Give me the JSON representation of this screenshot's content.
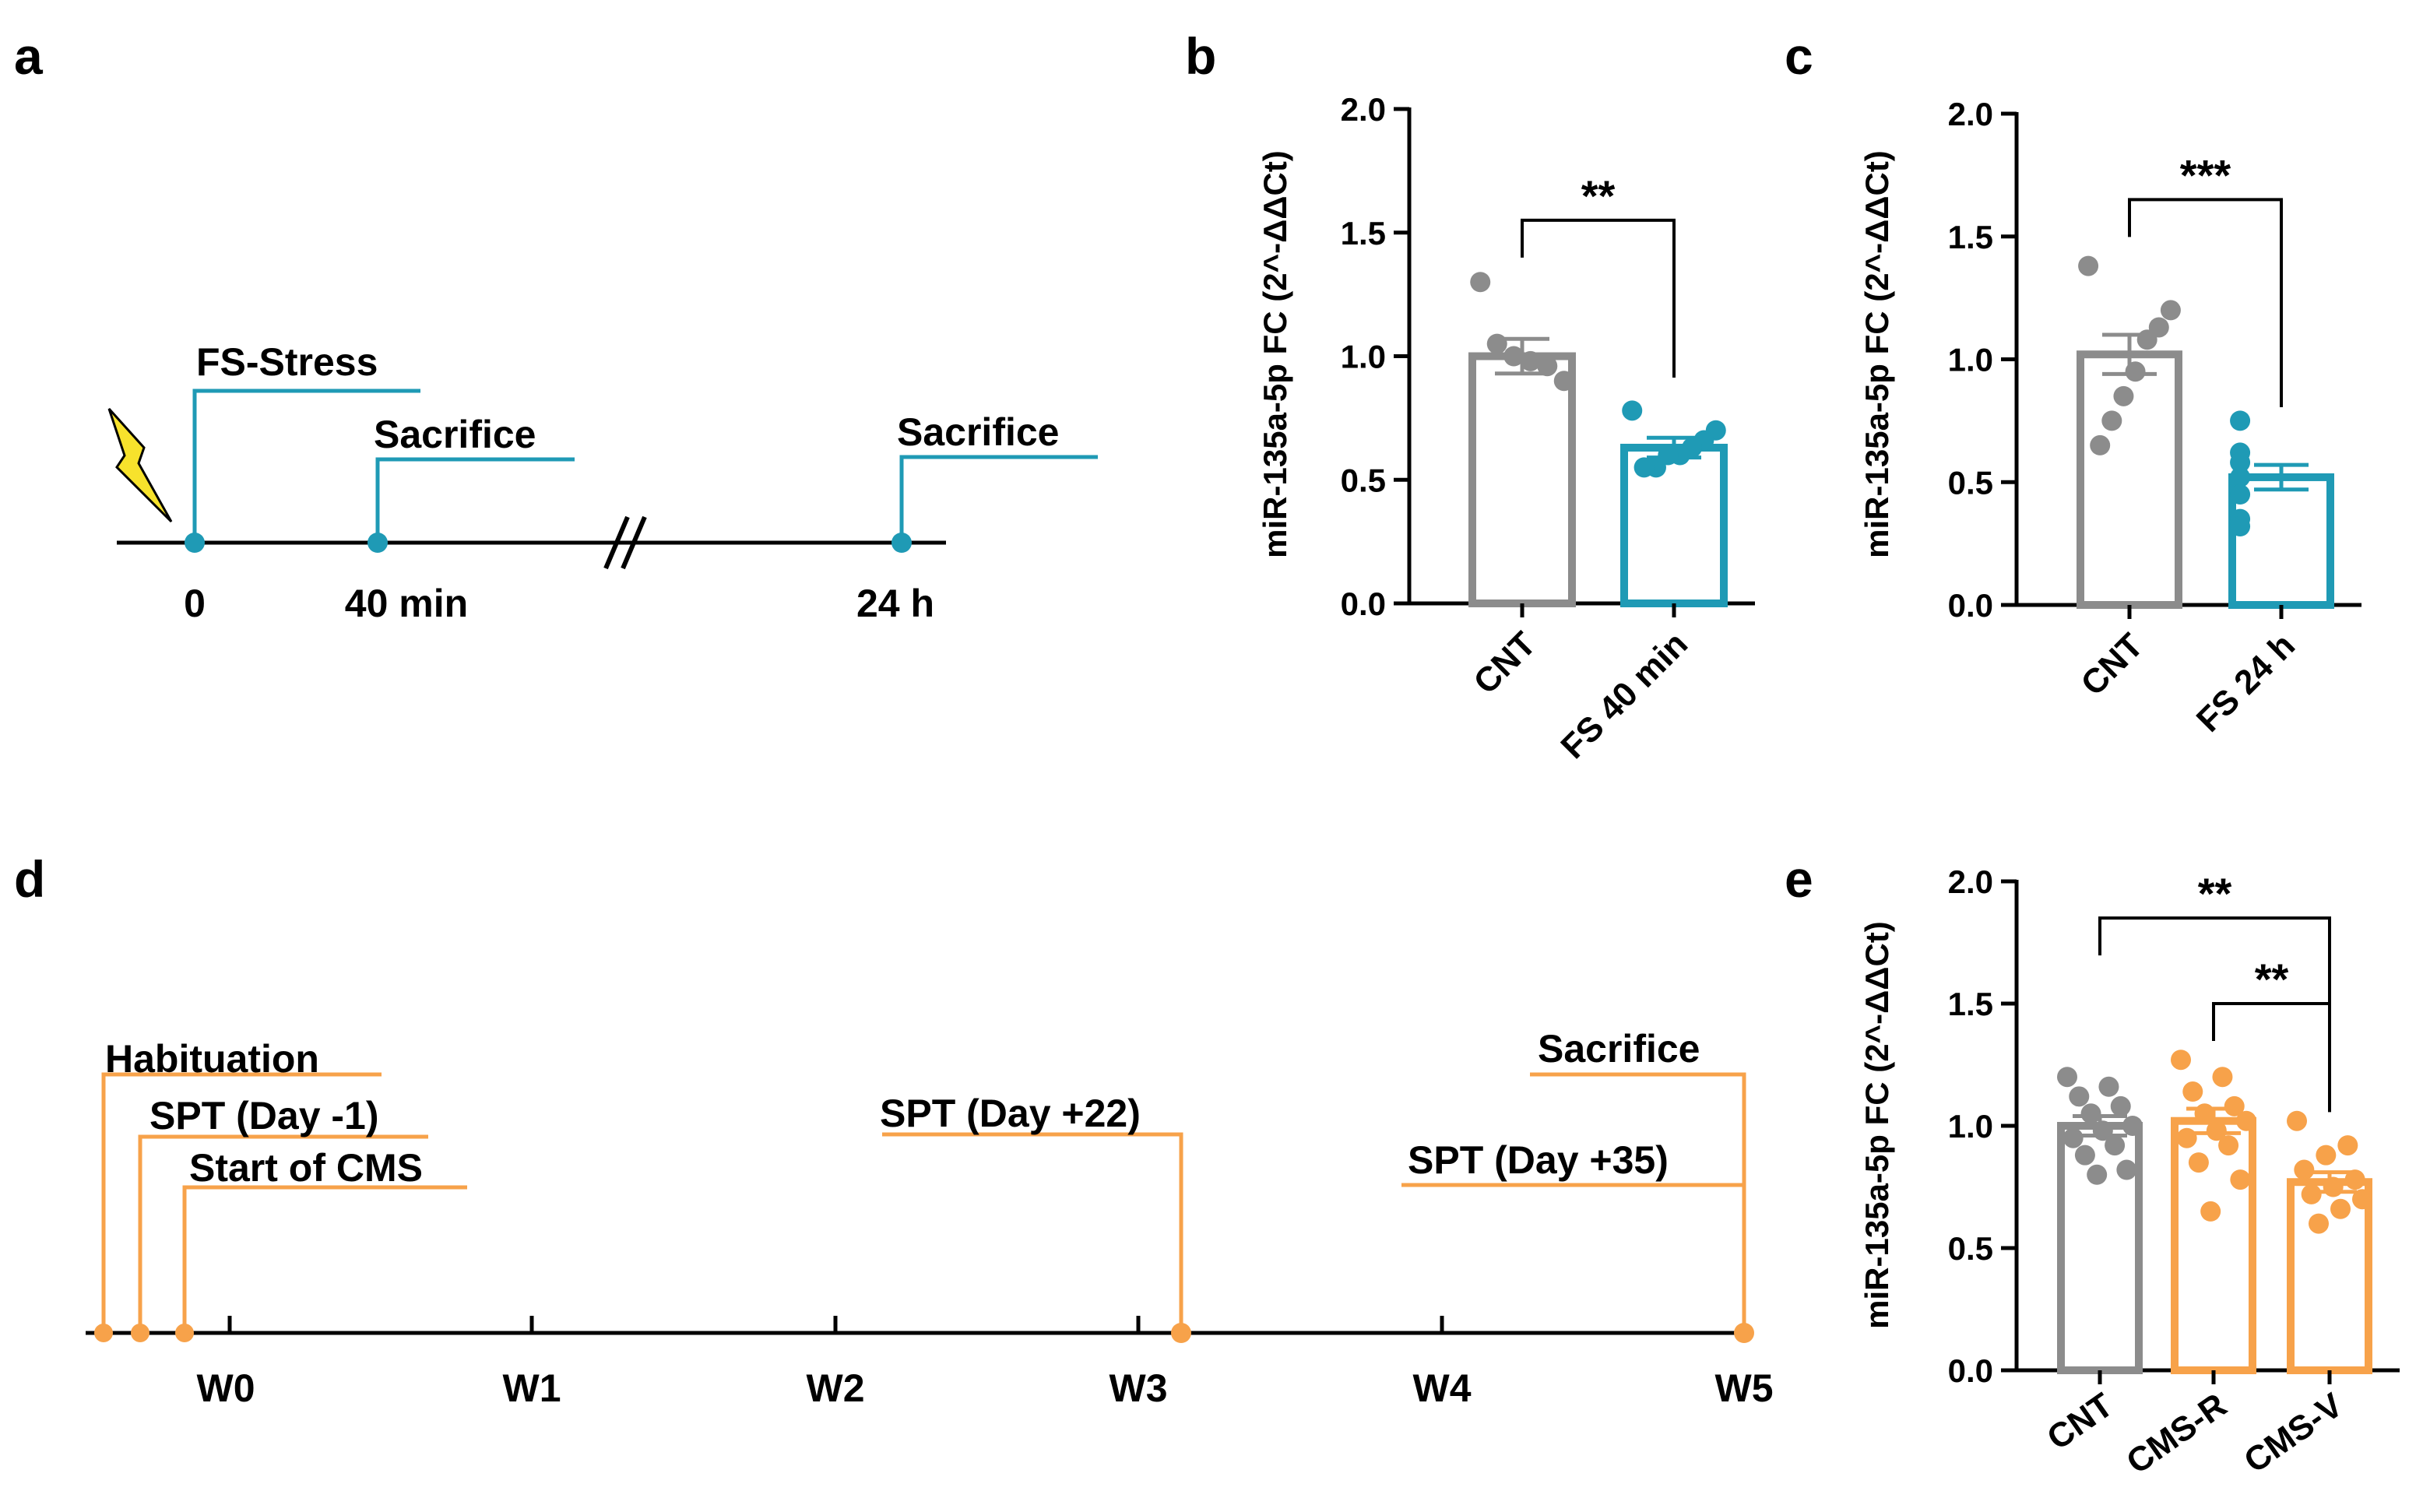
{
  "colors": {
    "teal": "#1f9ab5",
    "gray": "#8c8c8c",
    "orange": "#f7a24a",
    "bolt": "#f7e22c",
    "black": "#000000"
  },
  "panels": {
    "a": {
      "letter": "a",
      "events": [
        {
          "text": "FS-Stress"
        },
        {
          "text": "Sacrifice"
        },
        {
          "text": "Sacrifice"
        }
      ],
      "ticks": [
        "0",
        "40 min",
        "24 h"
      ],
      "icon": "lightning-bolt-icon"
    },
    "d": {
      "letter": "d",
      "events": [
        {
          "text": "Habituation"
        },
        {
          "text": "SPT (Day -1)"
        },
        {
          "text": "Start of CMS"
        },
        {
          "text": "SPT (Day +22)"
        },
        {
          "text": "Sacrifice"
        },
        {
          "text": "SPT (Day +35)"
        }
      ],
      "ticks": [
        "W0",
        "W1",
        "W2",
        "W3",
        "W4",
        "W5"
      ]
    }
  },
  "chart_data": [
    {
      "panel": "b",
      "type": "bar",
      "ylabel": "miR-135a-5p FC (2^-ΔΔCt)",
      "ylim": [
        0,
        2.0
      ],
      "yticks": [
        "0.0",
        "0.5",
        "1.0",
        "1.5",
        "2.0"
      ],
      "categories": [
        "CNT",
        "FS 40 min"
      ],
      "values": [
        1.0,
        0.63
      ],
      "sem": [
        0.07,
        0.04
      ],
      "points": [
        [
          1.3,
          1.05,
          1.0,
          0.98,
          0.96,
          0.9
        ],
        [
          0.78,
          0.7,
          0.66,
          0.63,
          0.6,
          0.6,
          0.55,
          0.55
        ]
      ],
      "bar_colors": [
        "gray",
        "teal"
      ],
      "significance": [
        {
          "pair": [
            0,
            1
          ],
          "label": "**",
          "y": 1.55
        }
      ]
    },
    {
      "panel": "c",
      "type": "bar",
      "ylabel": "miR-135a-5p FC (2^-ΔΔCt)",
      "ylim": [
        0,
        2.0
      ],
      "yticks": [
        "0.0",
        "0.5",
        "1.0",
        "1.5",
        "2.0"
      ],
      "categories": [
        "CNT",
        "FS 24 h"
      ],
      "values": [
        1.02,
        0.52
      ],
      "sem": [
        0.08,
        0.05
      ],
      "points": [
        [
          1.38,
          1.2,
          1.13,
          1.08,
          0.95,
          0.85,
          0.75,
          0.65
        ],
        [
          0.75,
          0.62,
          0.58,
          0.52,
          0.45,
          0.35,
          0.32
        ]
      ],
      "bar_colors": [
        "gray",
        "teal"
      ],
      "significance": [
        {
          "pair": [
            0,
            1
          ],
          "label": "***",
          "y": 1.65
        }
      ]
    },
    {
      "panel": "e",
      "type": "bar",
      "ylabel": "miR-135a-5p FC (2^-ΔΔCt)",
      "ylim": [
        0,
        2.0
      ],
      "yticks": [
        "0.0",
        "0.5",
        "1.0",
        "1.5",
        "2.0"
      ],
      "categories": [
        "CNT",
        "CMS-R",
        "CMS-V"
      ],
      "values": [
        1.0,
        1.02,
        0.77
      ],
      "sem": [
        0.04,
        0.05,
        0.04
      ],
      "points": [
        [
          1.2,
          1.16,
          1.12,
          1.08,
          1.05,
          1.0,
          0.98,
          0.95,
          0.92,
          0.88,
          0.82,
          0.8
        ],
        [
          1.27,
          1.2,
          1.14,
          1.08,
          1.05,
          1.02,
          0.98,
          0.95,
          0.92,
          0.85,
          0.78,
          0.65
        ],
        [
          1.02,
          0.92,
          0.88,
          0.82,
          0.78,
          0.75,
          0.72,
          0.7,
          0.66,
          0.6
        ]
      ],
      "bar_colors": [
        "gray",
        "orange",
        "orange"
      ],
      "significance": [
        {
          "pair": [
            0,
            2
          ],
          "label": "**",
          "y": 1.85
        },
        {
          "pair": [
            1,
            2
          ],
          "label": "**",
          "y": 1.5
        }
      ]
    }
  ]
}
